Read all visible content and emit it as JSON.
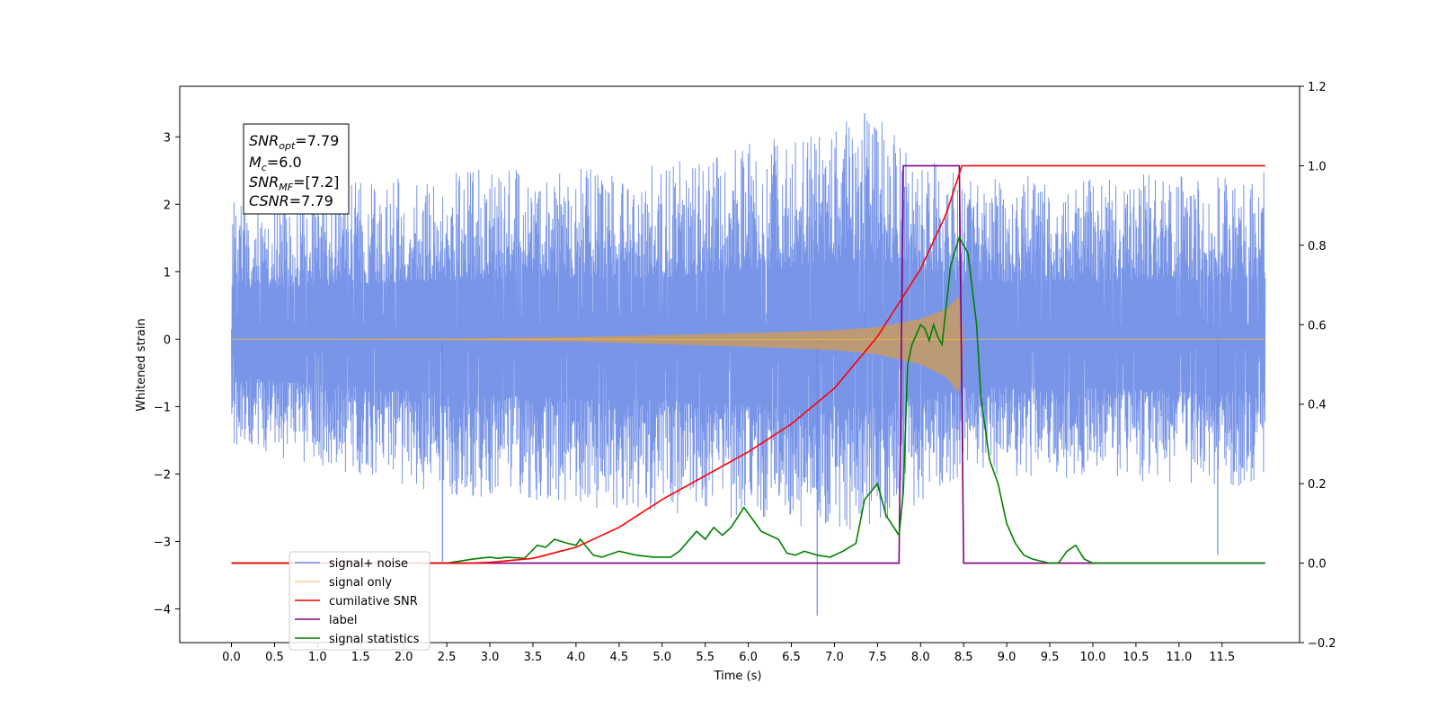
{
  "chart_data": {
    "type": "line",
    "xlabel": "Time (s)",
    "ylabel": "Whitened strain",
    "xlim": [
      -0.6,
      12.4
    ],
    "ylim": [
      -4.5,
      3.75
    ],
    "ylim_right": [
      -0.2,
      1.2
    ],
    "x_ticks": [
      "0.0",
      "0.5",
      "1.0",
      "1.5",
      "2.0",
      "2.5",
      "3.0",
      "3.5",
      "4.0",
      "4.5",
      "5.0",
      "5.5",
      "6.0",
      "6.5",
      "7.0",
      "7.5",
      "8.0",
      "8.5",
      "9.0",
      "9.5",
      "10.0",
      "10.5",
      "11.0",
      "11.5"
    ],
    "y_ticks_left": [
      "3",
      "2",
      "1",
      "0",
      "−1",
      "−2",
      "−3",
      "−4"
    ],
    "y_ticks_right": [
      "1.2",
      "1.0",
      "0.8",
      "0.6",
      "0.4",
      "0.2",
      "0.0",
      "−0.2"
    ],
    "grid": false,
    "legend_position": "lower-left",
    "annotation": {
      "snr_opt": "7.79",
      "mc": "6.0",
      "snr_mf": "[7.2]",
      "csnr": "7.79"
    },
    "series": [
      {
        "name": "signal+ noise",
        "axis": "left",
        "color": "#6a8ae6",
        "description_range": [
          0.0,
          12.0
        ],
        "noise_envelope": [
          [
            0.0,
            2.1,
            -1.6
          ],
          [
            2.5,
            2.5,
            -2.3
          ],
          [
            5.0,
            2.6,
            -2.6
          ],
          [
            7.4,
            3.35,
            -2.9
          ],
          [
            8.5,
            2.4,
            -2.0
          ],
          [
            12.0,
            2.5,
            -2.2
          ]
        ],
        "spikes": [
          [
            6.8,
            -4.1
          ],
          [
            7.35,
            3.35
          ],
          [
            2.45,
            -3.3
          ],
          [
            11.45,
            -3.2
          ]
        ]
      },
      {
        "name": "signal only",
        "axis": "left",
        "color": "#f5b942",
        "amplitude_envelope": [
          [
            0.0,
            0.0
          ],
          [
            2.5,
            0.01
          ],
          [
            4.0,
            0.03
          ],
          [
            5.0,
            0.06
          ],
          [
            6.0,
            0.09
          ],
          [
            7.0,
            0.13
          ],
          [
            7.5,
            0.18
          ],
          [
            8.0,
            0.3
          ],
          [
            8.3,
            0.45
          ],
          [
            8.45,
            0.65
          ],
          [
            8.5,
            0.0
          ],
          [
            12.0,
            0.0
          ]
        ]
      },
      {
        "name": "cumilative SNR",
        "axis": "right",
        "color": "#ff0000",
        "points": [
          [
            0.0,
            0.0
          ],
          [
            2.8,
            0.0
          ],
          [
            3.0,
            0.002
          ],
          [
            3.5,
            0.012
          ],
          [
            4.0,
            0.04
          ],
          [
            4.5,
            0.09
          ],
          [
            5.0,
            0.16
          ],
          [
            5.5,
            0.22
          ],
          [
            6.0,
            0.28
          ],
          [
            6.5,
            0.35
          ],
          [
            7.0,
            0.44
          ],
          [
            7.5,
            0.57
          ],
          [
            8.0,
            0.74
          ],
          [
            8.3,
            0.88
          ],
          [
            8.45,
            0.98
          ],
          [
            8.46,
            1.0
          ],
          [
            12.0,
            1.0
          ]
        ]
      },
      {
        "name": "label",
        "axis": "right",
        "color": "#800080",
        "points": [
          [
            0.0,
            0.0
          ],
          [
            7.75,
            0.0
          ],
          [
            7.8,
            1.0
          ],
          [
            8.45,
            1.0
          ],
          [
            8.5,
            0.0
          ],
          [
            12.0,
            0.0
          ]
        ]
      },
      {
        "name": "signal statistics",
        "axis": "right",
        "color": "#008000",
        "points": [
          [
            0.0,
            0.0
          ],
          [
            2.5,
            0.0
          ],
          [
            2.8,
            0.01
          ],
          [
            3.0,
            0.015
          ],
          [
            3.1,
            0.012
          ],
          [
            3.2,
            0.015
          ],
          [
            3.4,
            0.012
          ],
          [
            3.55,
            0.045
          ],
          [
            3.65,
            0.04
          ],
          [
            3.75,
            0.06
          ],
          [
            3.9,
            0.05
          ],
          [
            4.0,
            0.045
          ],
          [
            4.05,
            0.06
          ],
          [
            4.2,
            0.02
          ],
          [
            4.3,
            0.015
          ],
          [
            4.5,
            0.03
          ],
          [
            4.7,
            0.02
          ],
          [
            4.9,
            0.015
          ],
          [
            5.1,
            0.015
          ],
          [
            5.2,
            0.03
          ],
          [
            5.4,
            0.08
          ],
          [
            5.5,
            0.06
          ],
          [
            5.6,
            0.09
          ],
          [
            5.7,
            0.07
          ],
          [
            5.8,
            0.09
          ],
          [
            5.95,
            0.14
          ],
          [
            6.05,
            0.11
          ],
          [
            6.15,
            0.08
          ],
          [
            6.35,
            0.06
          ],
          [
            6.45,
            0.025
          ],
          [
            6.55,
            0.02
          ],
          [
            6.65,
            0.03
          ],
          [
            6.8,
            0.02
          ],
          [
            6.95,
            0.015
          ],
          [
            7.1,
            0.03
          ],
          [
            7.25,
            0.05
          ],
          [
            7.35,
            0.16
          ],
          [
            7.5,
            0.2
          ],
          [
            7.6,
            0.12
          ],
          [
            7.75,
            0.07
          ],
          [
            7.8,
            0.18
          ],
          [
            7.85,
            0.5
          ],
          [
            7.9,
            0.55
          ],
          [
            8.0,
            0.6
          ],
          [
            8.05,
            0.59
          ],
          [
            8.1,
            0.56
          ],
          [
            8.15,
            0.6
          ],
          [
            8.2,
            0.57
          ],
          [
            8.25,
            0.55
          ],
          [
            8.35,
            0.75
          ],
          [
            8.45,
            0.82
          ],
          [
            8.55,
            0.78
          ],
          [
            8.65,
            0.6
          ],
          [
            8.7,
            0.42
          ],
          [
            8.8,
            0.26
          ],
          [
            8.9,
            0.2
          ],
          [
            9.0,
            0.1
          ],
          [
            9.1,
            0.05
          ],
          [
            9.2,
            0.02
          ],
          [
            9.3,
            0.01
          ],
          [
            9.5,
            0.0
          ],
          [
            9.6,
            0.0
          ],
          [
            9.7,
            0.03
          ],
          [
            9.8,
            0.045
          ],
          [
            9.9,
            0.01
          ],
          [
            10.0,
            0.0
          ],
          [
            12.0,
            0.0
          ]
        ]
      }
    ]
  }
}
